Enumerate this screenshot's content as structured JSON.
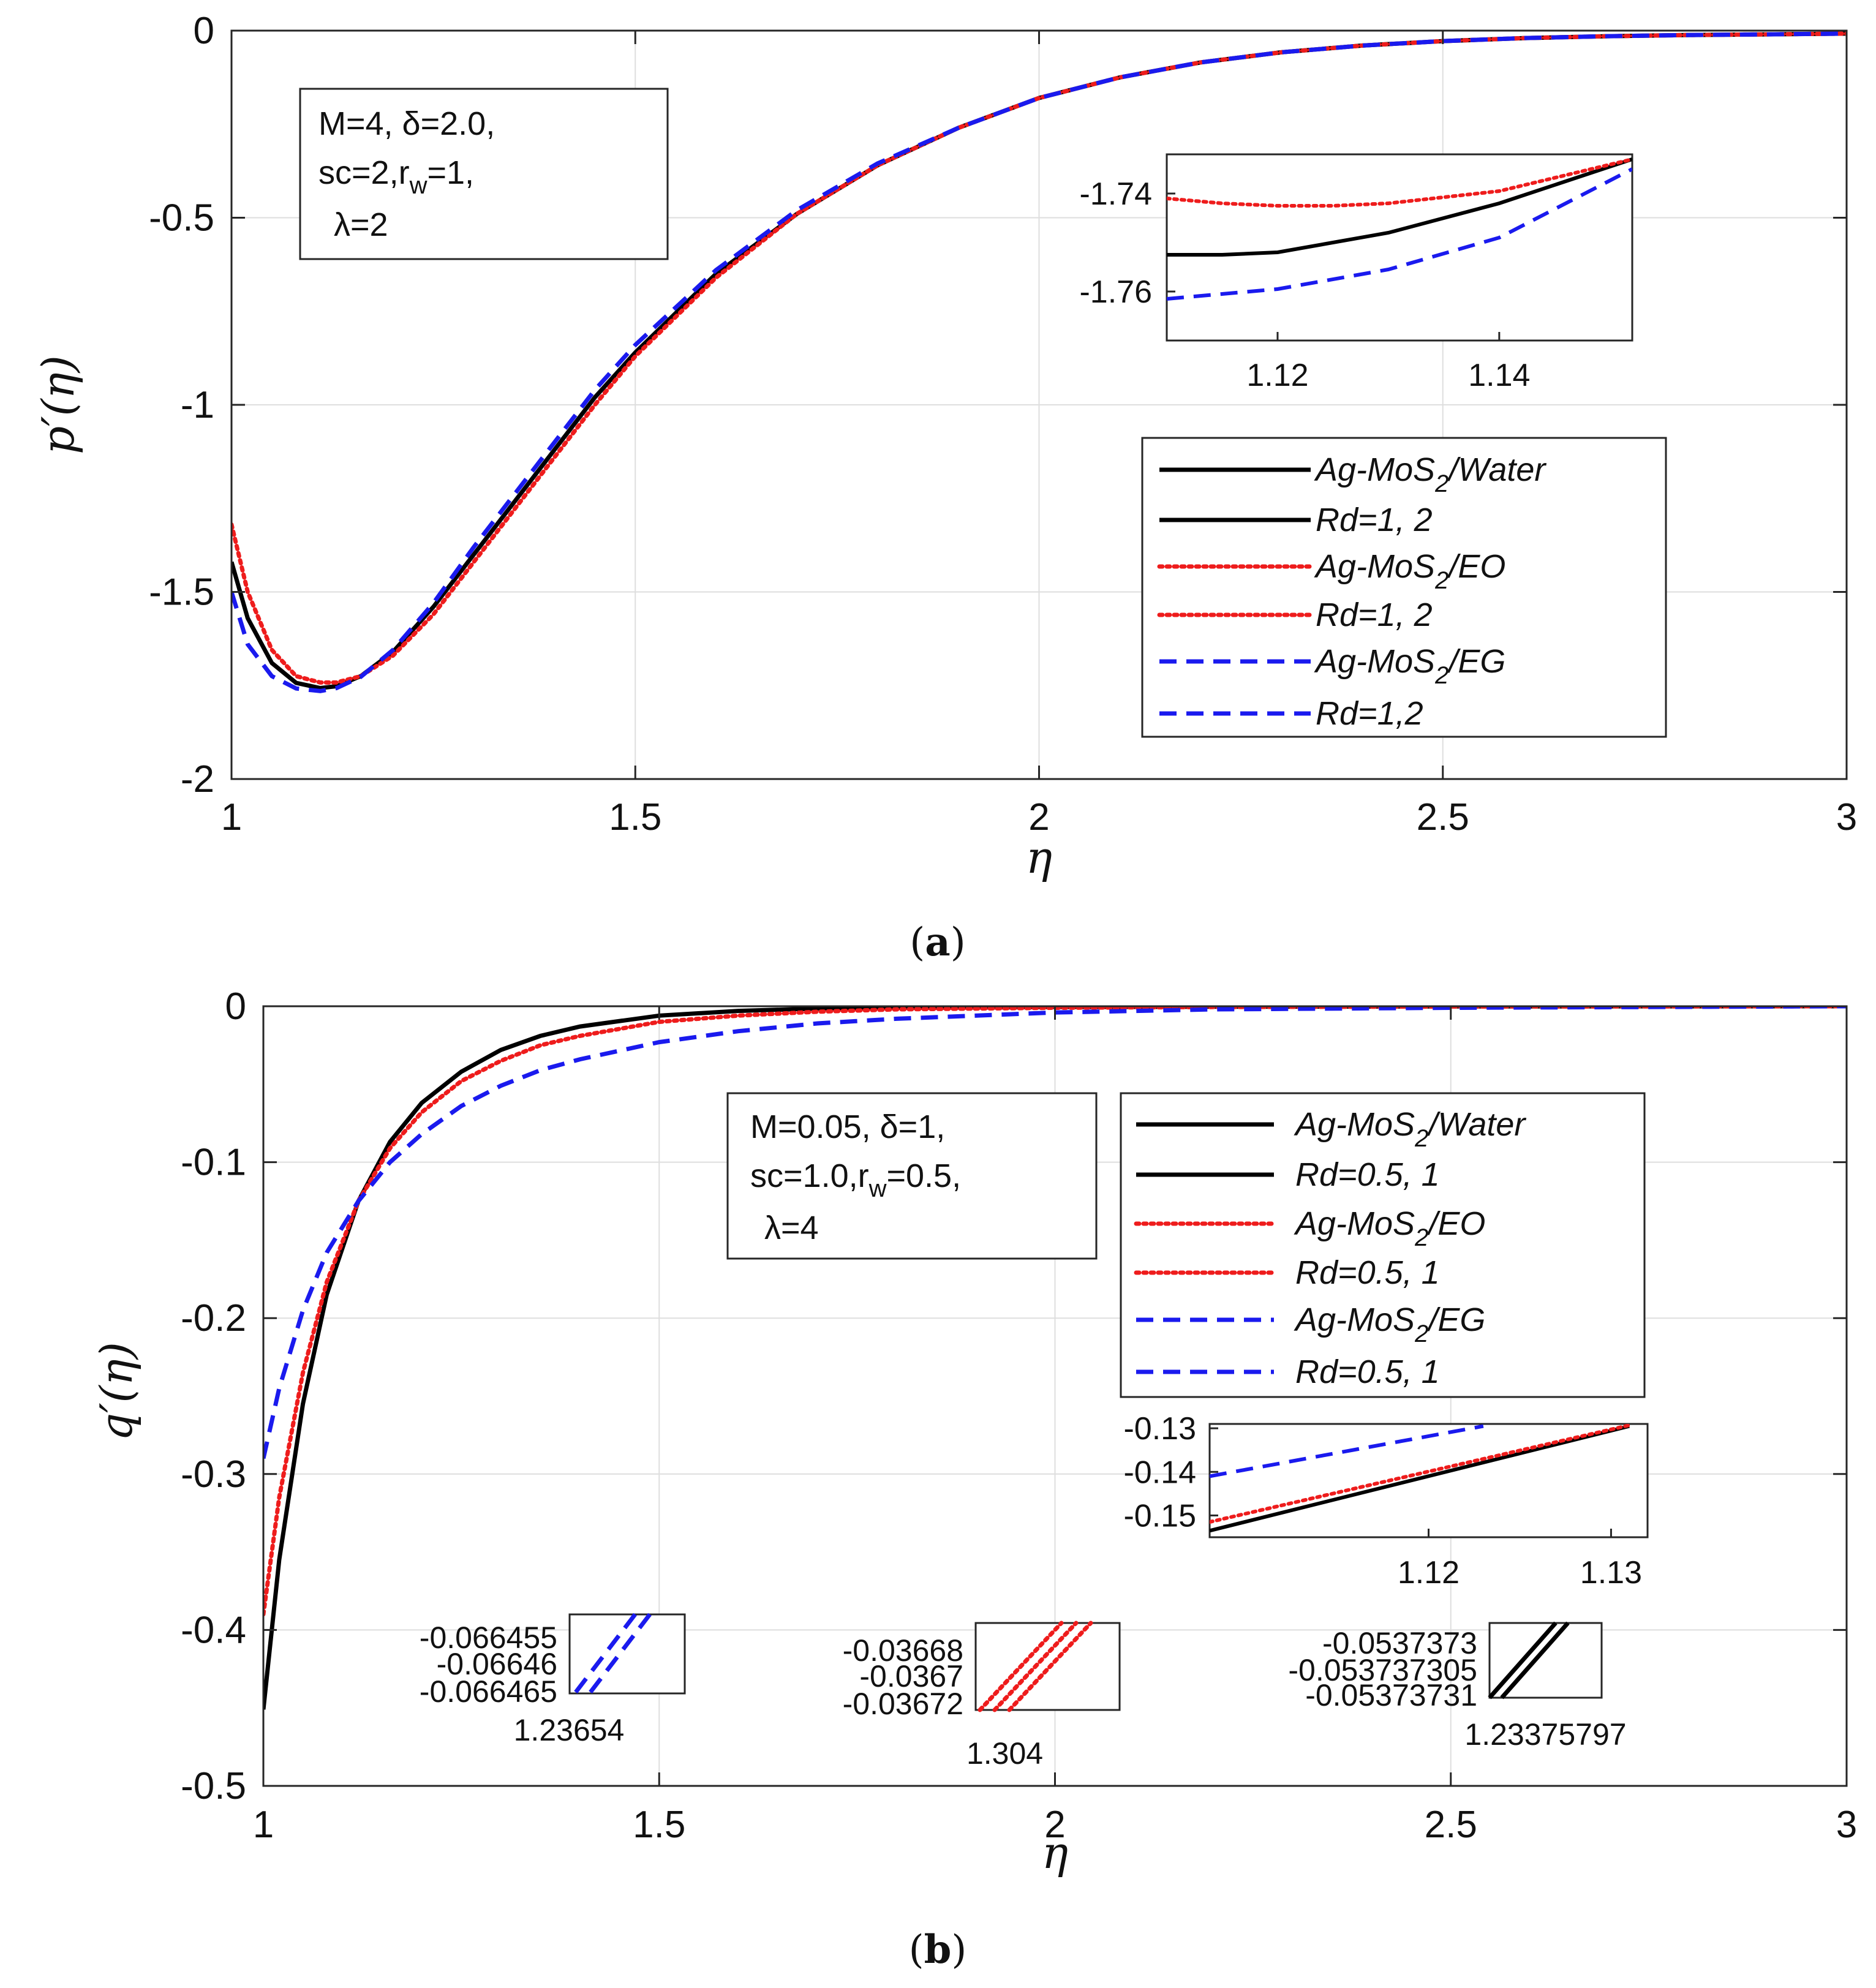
{
  "chart_data": [
    {
      "panel": "(a)",
      "caption_open": "(",
      "caption_letter": "a",
      "caption_close": ")",
      "type": "line",
      "xlabel": "η",
      "ylabel": "p′(η)",
      "xlim": [
        1,
        3
      ],
      "ylim": [
        -2,
        0
      ],
      "xticks": [
        1,
        1.5,
        2,
        2.5,
        3
      ],
      "xtick_labels": [
        "1",
        "1.5",
        "2",
        "2.5",
        "3"
      ],
      "yticks": [
        0,
        -0.5,
        -1,
        -1.5,
        -2
      ],
      "ytick_labels": [
        "0",
        "-0.5",
        "-1",
        "-1.5",
        "-2"
      ],
      "grid": true,
      "annotation": [
        "M=4, δ=2.0,",
        "sc=2,r_w=1,",
        "λ=2"
      ],
      "legend": [
        {
          "label": "Ag-MoS2/Water",
          "main": "Ag-MoS",
          "sub": "2",
          "rest": "/Water",
          "color": "#000000",
          "dash": "solid"
        },
        {
          "label": "Rd=1, 2",
          "color": "#000000",
          "dash": "solid"
        },
        {
          "label": "Ag-MoS2/EO",
          "main": "Ag-MoS",
          "sub": "2",
          "rest": "/EO",
          "color": "#ee1c1c",
          "dash": "dotted"
        },
        {
          "label": "Rd=1, 2",
          "color": "#ee1c1c",
          "dash": "dotted"
        },
        {
          "label": "Ag-MoS2/EG",
          "main": "Ag-MoS",
          "sub": "2",
          "rest": "/EG",
          "color": "#1a1aee",
          "dash": "dashed"
        },
        {
          "label": "Rd=1,2",
          "color": "#1a1aee",
          "dash": "dashed"
        }
      ],
      "series": [
        {
          "name": "Ag-MoS2/Water",
          "color": "#000000",
          "dash": "solid",
          "x": [
            1.0,
            1.02,
            1.05,
            1.08,
            1.11,
            1.13,
            1.16,
            1.2,
            1.25,
            1.3,
            1.35,
            1.4,
            1.45,
            1.5,
            1.6,
            1.7,
            1.8,
            1.9,
            2.0,
            2.1,
            2.2,
            2.3,
            2.4,
            2.5,
            2.6,
            2.7,
            2.8,
            2.9,
            3.0
          ],
          "y": [
            -1.42,
            -1.57,
            -1.69,
            -1.743,
            -1.757,
            -1.752,
            -1.725,
            -1.66,
            -1.54,
            -1.4,
            -1.26,
            -1.12,
            -0.98,
            -0.86,
            -0.65,
            -0.49,
            -0.36,
            -0.26,
            -0.18,
            -0.125,
            -0.085,
            -0.058,
            -0.04,
            -0.028,
            -0.02,
            -0.015,
            -0.012,
            -0.01,
            -0.008
          ]
        },
        {
          "name": "Ag-MoS2/EO",
          "color": "#ee1c1c",
          "dash": "dotted",
          "x": [
            1.0,
            1.02,
            1.05,
            1.08,
            1.11,
            1.13,
            1.16,
            1.2,
            1.25,
            1.3,
            1.35,
            1.4,
            1.45,
            1.5,
            1.6,
            1.7,
            1.8,
            1.9,
            2.0,
            2.1,
            2.2,
            2.3,
            2.4,
            2.5,
            2.6,
            2.7,
            2.8,
            2.9,
            3.0
          ],
          "y": [
            -1.32,
            -1.5,
            -1.655,
            -1.725,
            -1.742,
            -1.742,
            -1.725,
            -1.67,
            -1.56,
            -1.42,
            -1.28,
            -1.14,
            -1.0,
            -0.87,
            -0.66,
            -0.49,
            -0.36,
            -0.26,
            -0.18,
            -0.125,
            -0.085,
            -0.058,
            -0.04,
            -0.028,
            -0.02,
            -0.015,
            -0.012,
            -0.01,
            -0.008
          ]
        },
        {
          "name": "Ag-MoS2/EG",
          "color": "#1a1aee",
          "dash": "dashed",
          "x": [
            1.0,
            1.02,
            1.05,
            1.08,
            1.11,
            1.13,
            1.16,
            1.2,
            1.25,
            1.3,
            1.35,
            1.4,
            1.45,
            1.5,
            1.6,
            1.7,
            1.8,
            1.9,
            2.0,
            2.1,
            2.2,
            2.3,
            2.4,
            2.5,
            2.6,
            2.7,
            2.8,
            2.9,
            3.0
          ],
          "y": [
            -1.5,
            -1.64,
            -1.725,
            -1.758,
            -1.765,
            -1.757,
            -1.727,
            -1.655,
            -1.53,
            -1.38,
            -1.24,
            -1.1,
            -0.96,
            -0.84,
            -0.64,
            -0.48,
            -0.355,
            -0.26,
            -0.18,
            -0.125,
            -0.085,
            -0.058,
            -0.04,
            -0.028,
            -0.02,
            -0.015,
            -0.012,
            -0.01,
            -0.008
          ]
        }
      ],
      "insets": [
        {
          "xlim": [
            1.11,
            1.152
          ],
          "ylim": [
            -1.77,
            -1.732
          ],
          "xticks": [
            1.12,
            1.14
          ],
          "xtick_labels": [
            "1.12",
            "1.14"
          ],
          "yticks": [
            -1.74,
            -1.76
          ],
          "ytick_labels": [
            "-1.74",
            "-1.76"
          ],
          "series": [
            {
              "color": "#000000",
              "dash": "solid",
              "x": [
                1.11,
                1.115,
                1.12,
                1.13,
                1.14,
                1.152
              ],
              "y": [
                -1.7525,
                -1.7525,
                -1.752,
                -1.748,
                -1.742,
                -1.733
              ]
            },
            {
              "color": "#ee1c1c",
              "dash": "dotted",
              "x": [
                1.11,
                1.115,
                1.12,
                1.125,
                1.13,
                1.14,
                1.152
              ],
              "y": [
                -1.741,
                -1.742,
                -1.7425,
                -1.7425,
                -1.742,
                -1.7395,
                -1.733
              ]
            },
            {
              "color": "#1a1aee",
              "dash": "dashed",
              "x": [
                1.11,
                1.12,
                1.13,
                1.14,
                1.152
              ],
              "y": [
                -1.7615,
                -1.7595,
                -1.7555,
                -1.749,
                -1.735
              ]
            }
          ]
        }
      ]
    },
    {
      "panel": "(b)",
      "caption_open": "(",
      "caption_letter": "b",
      "caption_close": ")",
      "type": "line",
      "xlabel": "η",
      "ylabel": "q′(η)",
      "xlim": [
        1,
        3
      ],
      "ylim": [
        -0.5,
        0
      ],
      "xticks": [
        1,
        1.5,
        2,
        2.5,
        3
      ],
      "xtick_labels": [
        "1",
        "1.5",
        "2",
        "2.5",
        "3"
      ],
      "yticks": [
        0,
        -0.1,
        -0.2,
        -0.3,
        -0.4,
        -0.5
      ],
      "ytick_labels": [
        "0",
        "-0.1",
        "-0.2",
        "-0.3",
        "-0.4",
        "-0.5"
      ],
      "grid": true,
      "annotation": [
        "M=0.05, δ=1,",
        "sc=1.0,r_w=0.5,",
        "λ=4"
      ],
      "legend": [
        {
          "label": "Ag-MoS2/Water",
          "main": "Ag-MoS",
          "sub": "2",
          "rest": "/Water",
          "color": "#000000",
          "dash": "solid"
        },
        {
          "label": "Rd=0.5, 1",
          "color": "#000000",
          "dash": "solid"
        },
        {
          "label": "Ag-MoS2/EO",
          "main": "Ag-MoS",
          "sub": "2",
          "rest": "/EO",
          "color": "#ee1c1c",
          "dash": "dotted"
        },
        {
          "label": "Rd=0.5, 1",
          "color": "#ee1c1c",
          "dash": "dotted"
        },
        {
          "label": "Ag-MoS2/EG",
          "main": "Ag-MoS",
          "sub": "2",
          "rest": "/EG",
          "color": "#1a1aee",
          "dash": "dashed"
        },
        {
          "label": "Rd=0.5, 1",
          "color": "#1a1aee",
          "dash": "dashed"
        }
      ],
      "series": [
        {
          "name": "Ag-MoS2/Water",
          "color": "#000000",
          "dash": "solid",
          "x": [
            1.0,
            1.02,
            1.05,
            1.08,
            1.12,
            1.16,
            1.2,
            1.25,
            1.3,
            1.35,
            1.4,
            1.5,
            1.6,
            1.7,
            1.8,
            2.0,
            2.2,
            2.5,
            3.0
          ],
          "y": [
            -0.451,
            -0.355,
            -0.255,
            -0.185,
            -0.125,
            -0.087,
            -0.062,
            -0.042,
            -0.028,
            -0.019,
            -0.013,
            -0.006,
            -0.003,
            -0.0015,
            -0.001,
            -0.0005,
            -0.0003,
            -0.0001,
            0.0
          ]
        },
        {
          "name": "Ag-MoS2/EO",
          "color": "#ee1c1c",
          "dash": "dotted",
          "x": [
            1.0,
            1.02,
            1.05,
            1.08,
            1.12,
            1.16,
            1.2,
            1.25,
            1.3,
            1.35,
            1.4,
            1.5,
            1.6,
            1.7,
            1.8,
            2.0,
            2.2,
            2.5,
            3.0
          ],
          "y": [
            -0.39,
            -0.315,
            -0.235,
            -0.177,
            -0.125,
            -0.091,
            -0.068,
            -0.048,
            -0.035,
            -0.025,
            -0.019,
            -0.01,
            -0.006,
            -0.0035,
            -0.002,
            -0.001,
            -0.0005,
            -0.0002,
            0.0
          ]
        },
        {
          "name": "Ag-MoS2/EG",
          "color": "#1a1aee",
          "dash": "dashed",
          "x": [
            1.0,
            1.02,
            1.05,
            1.08,
            1.12,
            1.16,
            1.2,
            1.25,
            1.3,
            1.35,
            1.4,
            1.5,
            1.6,
            1.7,
            1.8,
            2.0,
            2.2,
            2.5,
            3.0
          ],
          "y": [
            -0.29,
            -0.245,
            -0.195,
            -0.158,
            -0.125,
            -0.1,
            -0.082,
            -0.064,
            -0.051,
            -0.041,
            -0.034,
            -0.023,
            -0.016,
            -0.011,
            -0.008,
            -0.004,
            -0.002,
            -0.001,
            0.0
          ]
        }
      ],
      "insets": [
        {
          "xlim": [
            1.108,
            1.132
          ],
          "ylim": [
            -0.155,
            -0.129
          ],
          "xticks": [
            1.12,
            1.13
          ],
          "xtick_labels": [
            "1.12",
            "1.13"
          ],
          "yticks": [
            -0.13,
            -0.14,
            -0.15
          ],
          "ytick_labels": [
            "-0.13",
            "-0.14",
            "-0.15"
          ],
          "series": [
            {
              "color": "#000000",
              "dash": "solid",
              "x": [
                1.108,
                1.131
              ],
              "y": [
                -0.1535,
                -0.1295
              ]
            },
            {
              "color": "#ee1c1c",
              "dash": "dotted",
              "x": [
                1.108,
                1.131
              ],
              "y": [
                -0.1515,
                -0.1293
              ]
            },
            {
              "color": "#1a1aee",
              "dash": "dashed",
              "x": [
                1.108,
                1.123
              ],
              "y": [
                -0.141,
                -0.1295
              ]
            }
          ]
        },
        {
          "xtick_labels": [
            "1.23654"
          ],
          "ytick_labels": [
            "-0.066455",
            "-0.06646",
            "-0.066465"
          ],
          "series": [
            {
              "color": "#1a1aee",
              "dash": "dashed",
              "pair": true
            }
          ]
        },
        {
          "xtick_labels": [
            "1.304"
          ],
          "ytick_labels": [
            "-0.03668",
            "-0.0367",
            "-0.03672"
          ],
          "series": [
            {
              "color": "#ee1c1c",
              "dash": "dotted",
              "pair": true
            }
          ]
        },
        {
          "xtick_labels": [
            "1.23375797"
          ],
          "ytick_labels": [
            "-0.0537373",
            "-0.053737305",
            "-0.05373731"
          ],
          "series": [
            {
              "color": "#000000",
              "dash": "solid",
              "pair": true
            }
          ]
        }
      ]
    }
  ]
}
